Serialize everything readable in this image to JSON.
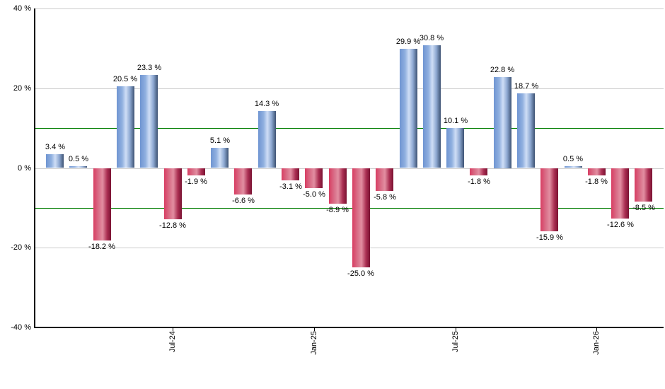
{
  "chart_data": {
    "type": "bar",
    "title": "",
    "xlabel": "",
    "ylabel": "",
    "ylim": [
      -40,
      40
    ],
    "grid": true,
    "legend": null,
    "y_ticks": [
      {
        "value": 40,
        "label": "40 %"
      },
      {
        "value": 20,
        "label": "20 %"
      },
      {
        "value": 0,
        "label": "0 %"
      },
      {
        "value": -20,
        "label": "-20 %"
      },
      {
        "value": -40,
        "label": "-40 %"
      }
    ],
    "x_ticks": [
      {
        "bar_index": 5,
        "label": "Jul-24"
      },
      {
        "bar_index": 11,
        "label": "Jan-25"
      },
      {
        "bar_index": 17,
        "label": "Jul-25"
      },
      {
        "bar_index": 23,
        "label": "Jan-26"
      }
    ],
    "reference_lines": [
      10,
      -10
    ],
    "bars": [
      {
        "value": 3.4,
        "label": "3.4 %"
      },
      {
        "value": 0.5,
        "label": "0.5 %"
      },
      {
        "value": -18.2,
        "label": "-18.2 %"
      },
      {
        "value": 20.5,
        "label": "20.5 %"
      },
      {
        "value": 23.3,
        "label": "23.3 %"
      },
      {
        "value": -12.8,
        "label": "-12.8 %"
      },
      {
        "value": -1.9,
        "label": "-1.9 %"
      },
      {
        "value": 5.1,
        "label": "5.1 %"
      },
      {
        "value": -6.6,
        "label": "-6.6 %"
      },
      {
        "value": 14.3,
        "label": "14.3 %"
      },
      {
        "value": -3.1,
        "label": "-3.1 %"
      },
      {
        "value": -5.0,
        "label": "-5.0 %"
      },
      {
        "value": -8.9,
        "label": "-8.9 %"
      },
      {
        "value": -25.0,
        "label": "-25.0 %"
      },
      {
        "value": -5.8,
        "label": "-5.8 %"
      },
      {
        "value": 29.9,
        "label": "29.9 %"
      },
      {
        "value": 30.8,
        "label": "30.8 %"
      },
      {
        "value": 10.1,
        "label": "10.1 %"
      },
      {
        "value": -1.8,
        "label": "-1.8 %"
      },
      {
        "value": 22.8,
        "label": "22.8 %"
      },
      {
        "value": 18.7,
        "label": "18.7 %"
      },
      {
        "value": -15.9,
        "label": "-15.9 %"
      },
      {
        "value": 0.5,
        "label": "0.5 %"
      },
      {
        "value": -1.8,
        "label": "-1.8 %"
      },
      {
        "value": -12.6,
        "label": "-12.6 %"
      },
      {
        "value": -8.5,
        "label": "-8.5 %"
      }
    ],
    "colors": {
      "positive_bar": "#6f95d2",
      "positive_bar_highlight": "#cfdef6",
      "positive_bar_shadow": "#3d5273",
      "negative_bar": "#d83e63",
      "negative_bar_highlight": "#e28ea1",
      "negative_bar_shadow": "#7a1232",
      "reference_line": "#007d00",
      "gridline": "#cccccc",
      "axis": "#000000",
      "label_text": "#000000"
    }
  }
}
